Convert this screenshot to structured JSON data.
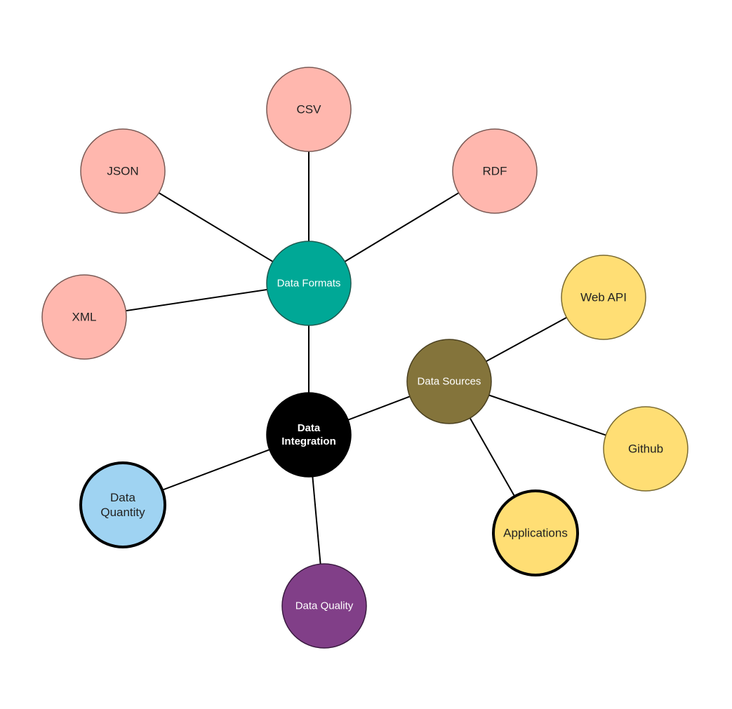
{
  "colors": {
    "format": "#ffb7ae",
    "format_hub": "#00a896",
    "integration": "#000000",
    "sources_hub": "#84743b",
    "source": "#ffde74",
    "quantity": "#9fd3f2",
    "quality": "#813f88"
  },
  "nodes": {
    "csv": {
      "label": [
        "CSV"
      ]
    },
    "json": {
      "label": [
        "JSON"
      ]
    },
    "rdf": {
      "label": [
        "RDF"
      ]
    },
    "xml": {
      "label": [
        "XML"
      ]
    },
    "data_formats": {
      "label": [
        "Data Formats"
      ]
    },
    "data_integration": {
      "label": [
        "Data",
        "Integration"
      ]
    },
    "data_sources": {
      "label": [
        "Data Sources"
      ]
    },
    "web_api": {
      "label": [
        "Web API"
      ]
    },
    "github": {
      "label": [
        "Github"
      ]
    },
    "applications": {
      "label": [
        "Applications"
      ]
    },
    "data_quantity": {
      "label": [
        "Data",
        "Quantity"
      ]
    },
    "data_quality": {
      "label": [
        "Data Quality"
      ]
    }
  },
  "edges": [
    [
      "data_formats",
      "csv"
    ],
    [
      "data_formats",
      "json"
    ],
    [
      "data_formats",
      "rdf"
    ],
    [
      "data_formats",
      "xml"
    ],
    [
      "data_formats",
      "data_integration"
    ],
    [
      "data_integration",
      "data_sources"
    ],
    [
      "data_integration",
      "data_quantity"
    ],
    [
      "data_integration",
      "data_quality"
    ],
    [
      "data_sources",
      "web_api"
    ],
    [
      "data_sources",
      "github"
    ],
    [
      "data_sources",
      "applications"
    ]
  ]
}
